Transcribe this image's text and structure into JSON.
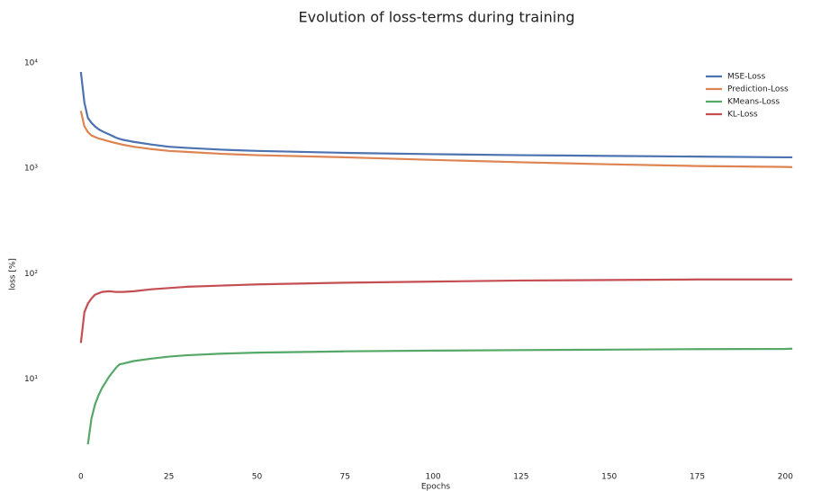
{
  "chart_data": {
    "type": "line",
    "title": "Evolution of loss-terms during training",
    "x_label": "Epochs",
    "y_label": "loss [%]",
    "x": [
      0,
      1,
      2,
      3,
      4,
      5,
      6,
      8,
      10,
      11,
      12,
      15,
      20,
      25,
      30,
      40,
      50,
      75,
      100,
      125,
      150,
      175,
      200,
      202
    ],
    "series": [
      {
        "name": "MSE-Loss",
        "color": "#4c72b0",
        "values": [
          8200,
          4200,
          3000,
          2700,
          2500,
          2350,
          2250,
          2100,
          1950,
          1900,
          1860,
          1780,
          1680,
          1600,
          1560,
          1500,
          1460,
          1400,
          1360,
          1330,
          1310,
          1290,
          1270,
          1270
        ]
      },
      {
        "name": "Prediction-Loss",
        "color": "#dd8452",
        "values": [
          3500,
          2500,
          2200,
          2050,
          1980,
          1920,
          1880,
          1800,
          1730,
          1700,
          1670,
          1600,
          1520,
          1460,
          1430,
          1370,
          1330,
          1270,
          1200,
          1140,
          1090,
          1050,
          1030,
          1025
        ]
      },
      {
        "name": "KMeans-Loss",
        "color": "#55a868",
        "values": [
          null,
          null,
          2.4,
          4.2,
          5.7,
          7,
          8.2,
          10.5,
          12.8,
          13.8,
          14,
          14.8,
          15.6,
          16.3,
          16.8,
          17.4,
          17.8,
          18.3,
          18.6,
          18.8,
          19,
          19.2,
          19.3,
          19.4
        ]
      },
      {
        "name": "KL-Loss",
        "color": "#c44e52",
        "values": [
          22,
          43,
          52,
          58,
          63,
          65,
          67,
          68,
          67,
          67,
          67,
          68,
          71,
          73,
          75,
          77,
          79,
          82,
          84,
          86,
          87,
          88,
          88,
          88
        ]
      }
    ],
    "xlim": [
      -2,
      204
    ],
    "xticks": [
      0,
      25,
      50,
      75,
      100,
      125,
      150,
      175,
      200
    ],
    "ylim": [
      1.5,
      18000
    ],
    "y_scale": "log",
    "yticks": [
      {
        "value": 10,
        "label": "10¹"
      },
      {
        "value": 100,
        "label": "10²"
      },
      {
        "value": 1000,
        "label": "10³"
      },
      {
        "value": 10000,
        "label": "10⁴"
      }
    ],
    "grid": false,
    "legend": "upper right"
  }
}
